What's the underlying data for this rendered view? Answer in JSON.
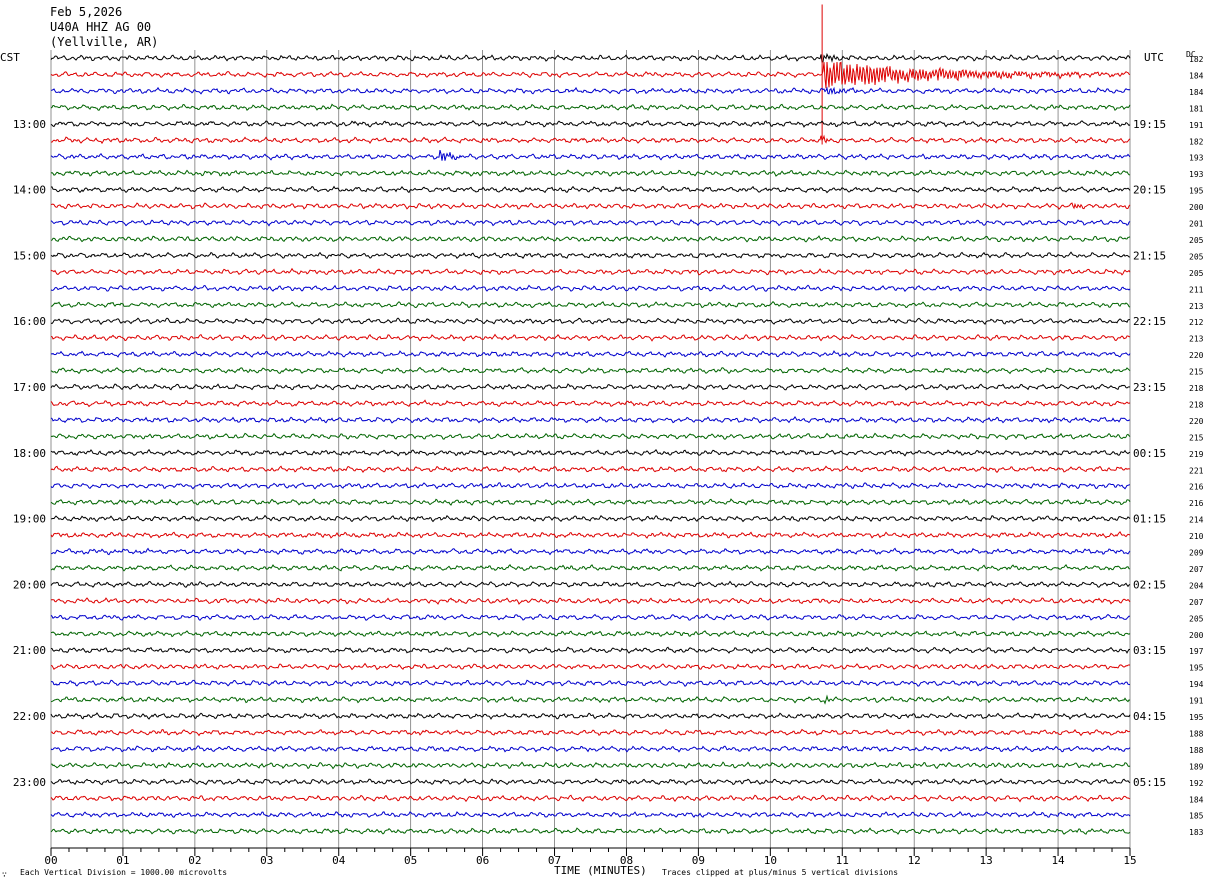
{
  "header": {
    "date": "Feb 5,2026",
    "station": "U40A HHZ AG 00",
    "location": "(Yellville, AR)"
  },
  "left_tz": "CST",
  "right_tz": "UTC",
  "dc_header": "DC",
  "footer": {
    "scale": "Each Vertical Division = 1000.00 microvolts",
    "clip": "Traces clipped at plus/minus 5 vertical divisions",
    "corner": "∵"
  },
  "chart_data": {
    "type": "line",
    "xlabel": "TIME (MINUTES)",
    "xlim": [
      0,
      15
    ],
    "x_ticks": [
      "00",
      "01",
      "02",
      "03",
      "04",
      "05",
      "06",
      "07",
      "08",
      "09",
      "10",
      "11",
      "12",
      "13",
      "14",
      "15"
    ],
    "trace_count": 48,
    "trace_colors": [
      "#000000",
      "#dd0000",
      "#0000cc",
      "#006400"
    ],
    "left_hour_labels": [
      {
        "trace": 4,
        "label": "13:00"
      },
      {
        "trace": 8,
        "label": "14:00"
      },
      {
        "trace": 12,
        "label": "15:00"
      },
      {
        "trace": 16,
        "label": "16:00"
      },
      {
        "trace": 20,
        "label": "17:00"
      },
      {
        "trace": 24,
        "label": "18:00"
      },
      {
        "trace": 28,
        "label": "19:00"
      },
      {
        "trace": 32,
        "label": "20:00"
      },
      {
        "trace": 36,
        "label": "21:00"
      },
      {
        "trace": 40,
        "label": "22:00"
      },
      {
        "trace": 44,
        "label": "23:00"
      }
    ],
    "right_hour_labels": [
      {
        "trace": 4,
        "label": "19:15"
      },
      {
        "trace": 8,
        "label": "20:15"
      },
      {
        "trace": 12,
        "label": "21:15"
      },
      {
        "trace": 16,
        "label": "22:15"
      },
      {
        "trace": 20,
        "label": "23:15"
      },
      {
        "trace": 24,
        "label": "00:15"
      },
      {
        "trace": 28,
        "label": "01:15"
      },
      {
        "trace": 32,
        "label": "02:15"
      },
      {
        "trace": 36,
        "label": "03:15"
      },
      {
        "trace": 40,
        "label": "04:15"
      },
      {
        "trace": 44,
        "label": "05:15"
      }
    ],
    "dc_offsets": [
      "182",
      "184",
      "184",
      "181",
      "191",
      "182",
      "193",
      "193",
      "195",
      "200",
      "201",
      "205",
      "205",
      "205",
      "211",
      "213",
      "212",
      "213",
      "220",
      "215",
      "218",
      "218",
      "220",
      "215",
      "219",
      "221",
      "216",
      "216",
      "214",
      "210",
      "209",
      "207",
      "204",
      "207",
      "205",
      "200",
      "197",
      "195",
      "194",
      "191",
      "195",
      "188",
      "188",
      "189",
      "192",
      "184",
      "185",
      "183"
    ],
    "events": [
      {
        "trace": 0,
        "start_min": 10.7,
        "dur_min": 0.55,
        "amp": 4
      },
      {
        "trace": 1,
        "start_min": 10.72,
        "dur_min": 4.2,
        "amp": 14,
        "spike": 70
      },
      {
        "trace": 2,
        "start_min": 10.75,
        "dur_min": 0.6,
        "amp": 5
      },
      {
        "trace": 5,
        "start_min": 10.7,
        "dur_min": 0.2,
        "amp": 5
      },
      {
        "trace": 6,
        "start_min": 5.4,
        "dur_min": 0.45,
        "amp": 6
      },
      {
        "trace": 9,
        "start_min": 14.2,
        "dur_min": 0.3,
        "amp": 3
      },
      {
        "trace": 39,
        "start_min": 10.75,
        "dur_min": 0.15,
        "amp": 5
      }
    ]
  }
}
